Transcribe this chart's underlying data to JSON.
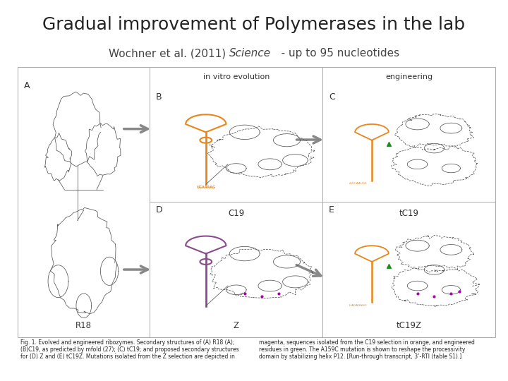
{
  "title": "Gradual improvement of Polymerases in the lab",
  "subtitle_normal": "Wochner et al. (2011) ",
  "subtitle_italic": "Science",
  "subtitle_rest": "   - up to 95 nucleotides",
  "title_fontsize": 18,
  "subtitle_fontsize": 11,
  "background_color": "#ffffff",
  "caption_left": "Fig. 1. Evolved and engineered ribozymes. Secondary structures of (A) R18 (A);\n(B)C19, as predicted by mfold (27); (C) tC19; and proposed secondary structures\nfor (D) Z and (E) tC19Z. Mutations isolated from the Z selection are depicted in",
  "caption_right": "magenta, sequences isolated from the C19 selection in orange, and engineered\nresidues in green. The A159C mutation is shown to reshape the processivity\ndomain by stabilizing helix P12. [Run-through transcript, 3’-RTI (table S1).]",
  "panel_labels": [
    "A",
    "B",
    "C",
    "D",
    "E"
  ],
  "panel_sublabels": [
    "R18",
    "C19",
    "tC19",
    "Z",
    "tC19Z"
  ],
  "section_labels": [
    "in vitro evolution",
    "engineering"
  ],
  "label_color": "#333333",
  "line_color": "#aaaaaa",
  "arrow_color": "#888888",
  "caption_fontsize": 5.5,
  "section_fontsize": 8,
  "panel_letter_fontsize": 9,
  "sublabel_fontsize": 8.5
}
